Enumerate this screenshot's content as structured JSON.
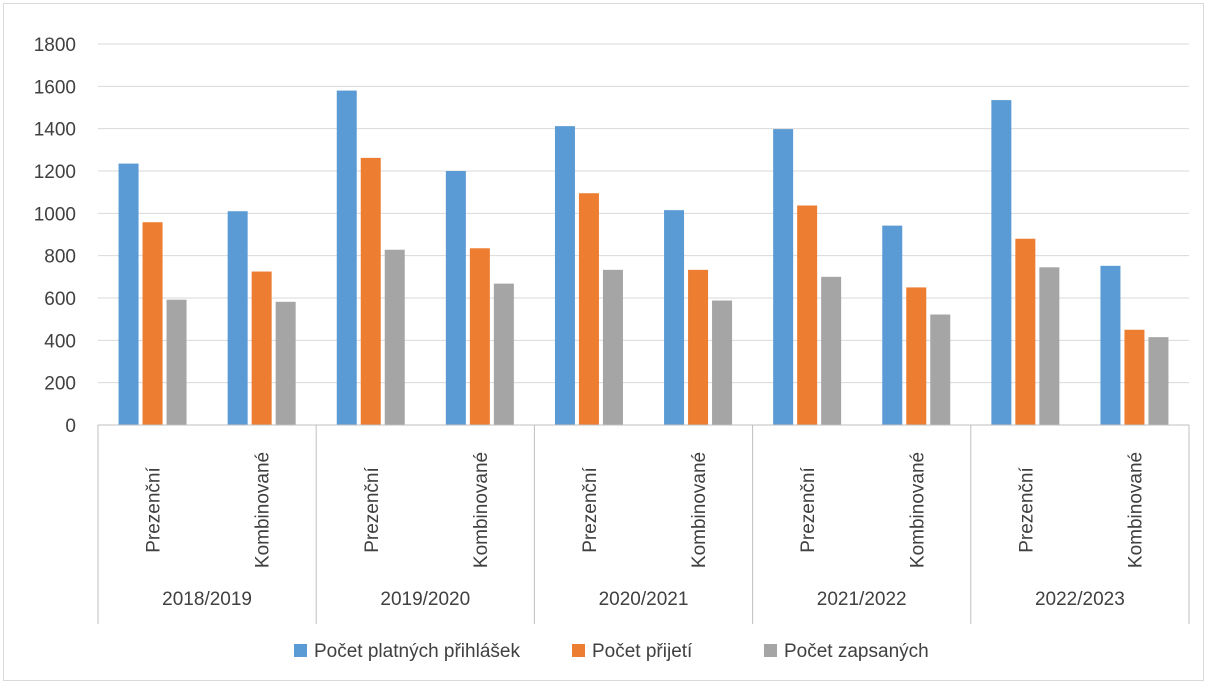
{
  "chart_data": {
    "type": "bar",
    "groups": [
      {
        "label": "2018/2019",
        "categories": [
          "Prezenční",
          "Kombinované"
        ]
      },
      {
        "label": "2019/2020",
        "categories": [
          "Prezenční",
          "Kombinované"
        ]
      },
      {
        "label": "2020/2021",
        "categories": [
          "Prezenční",
          "Kombinované"
        ]
      },
      {
        "label": "2021/2022",
        "categories": [
          "Prezenční",
          "Kombinované"
        ]
      },
      {
        "label": "2022/2023",
        "categories": [
          "Prezenční",
          "Kombinované"
        ]
      }
    ],
    "series": [
      {
        "name": "Počet platných přihlášek",
        "color": "#5b9bd5",
        "values": [
          1235,
          1010,
          1580,
          1200,
          1412,
          1015,
          1398,
          942,
          1535,
          752
        ]
      },
      {
        "name": "Počet přijetí",
        "color": "#ed7d31",
        "values": [
          958,
          725,
          1262,
          835,
          1095,
          733,
          1037,
          650,
          880,
          450
        ]
      },
      {
        "name": "Počet zapsaných",
        "color": "#a5a5a5",
        "values": [
          592,
          582,
          828,
          668,
          733,
          588,
          700,
          522,
          745,
          415
        ]
      }
    ],
    "ylim": [
      0,
      1800
    ],
    "yticks": [
      0,
      200,
      400,
      600,
      800,
      1000,
      1200,
      1400,
      1600,
      1800
    ],
    "grid": true,
    "legend_position": "bottom"
  }
}
